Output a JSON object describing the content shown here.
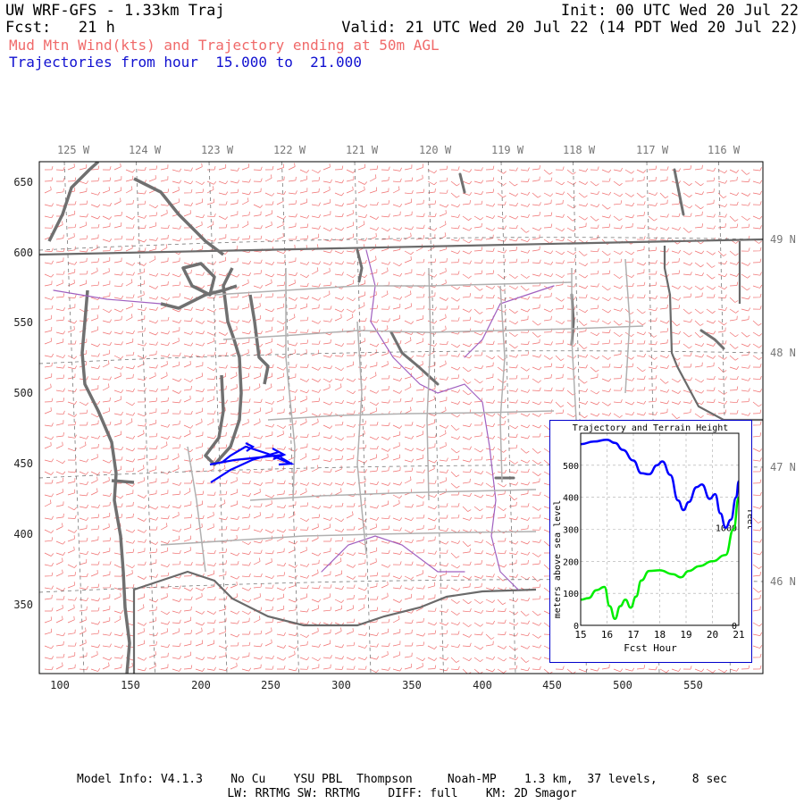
{
  "header": {
    "title": "UW WRF-GFS - 1.33km Traj",
    "init": "Init: 00 UTC Wed 20 Jul 22",
    "fcst_label": "Fcst:   21 h",
    "valid": "Valid: 21 UTC Wed 20 Jul 22 (14 PDT Wed 20 Jul 22)",
    "subtitle": "Mud Mtn Wind(kts) and Trajectory ending at 50m AGL",
    "traj_range": "Trajectories from hour  15.000 to  21.000"
  },
  "map": {
    "x_ticks": [
      "100",
      "150",
      "200",
      "250",
      "300",
      "350",
      "400",
      "450",
      "500",
      "550"
    ],
    "y_ticks": [
      "350",
      "400",
      "450",
      "500",
      "550",
      "600",
      "650"
    ],
    "lon_labels": [
      "125 W",
      "124 W",
      "123 W",
      "122 W",
      "121 W",
      "120 W",
      "119 W",
      "118 W",
      "117 W",
      "116 W"
    ],
    "lat_labels": [
      "49 N",
      "48 N",
      "47 N",
      "46 N"
    ],
    "colors": {
      "wind_barbs": "#f07070",
      "trajectory": "#0000ff",
      "coast": "#707070",
      "roads": "#aaaaaa",
      "rivers": "#a060c0"
    }
  },
  "inset": {
    "title": "Trajectory and Terrain Height",
    "xlabel": "Fcst Hour",
    "ylabel_left": "meters above sea level",
    "ylabel_right": "feet",
    "x_ticks": [
      "15",
      "16",
      "17",
      "18",
      "19",
      "20",
      "21"
    ],
    "y_ticks_left": [
      "0",
      "100",
      "200",
      "300",
      "400",
      "500"
    ],
    "y_ticks_right": [
      "0",
      "1000"
    ]
  },
  "chart_data": {
    "type": "line",
    "title": "Trajectory and Terrain Height",
    "xlabel": "Fcst Hour",
    "ylabel": "meters above sea level",
    "xlim": [
      15,
      21
    ],
    "ylim": [
      0,
      600
    ],
    "series": [
      {
        "color": "#0000ff",
        "x": [
          15.0,
          15.5,
          16.0,
          16.3,
          16.6,
          17.0,
          17.3,
          17.6,
          17.9,
          18.1,
          18.4,
          18.7,
          18.9,
          19.1,
          19.4,
          19.6,
          19.9,
          20.1,
          20.3,
          20.5,
          20.7,
          20.9,
          21.0
        ],
        "values": [
          566,
          574,
          580,
          570,
          548,
          515,
          475,
          472,
          500,
          512,
          470,
          390,
          360,
          385,
          432,
          440,
          395,
          410,
          350,
          305,
          330,
          400,
          450
        ]
      },
      {
        "color": "#00ee00",
        "x": [
          15.0,
          15.3,
          15.6,
          15.9,
          16.1,
          16.3,
          16.5,
          16.7,
          16.9,
          17.1,
          17.3,
          17.6,
          18.0,
          18.5,
          18.8,
          19.1,
          19.5,
          20.0,
          20.5,
          20.8,
          21.0
        ],
        "values": [
          80,
          85,
          110,
          120,
          60,
          20,
          60,
          80,
          55,
          90,
          140,
          170,
          172,
          160,
          150,
          170,
          185,
          200,
          220,
          300,
          400
        ]
      }
    ]
  },
  "footer": {
    "line1": "Model Info: V4.1.3    No Cu    YSU PBL  Thompson     Noah-MP    1.3 km,  37 levels,     8 sec",
    "line2": "LW: RRTMG SW: RRTMG    DIFF: full    KM: 2D Smagor"
  }
}
